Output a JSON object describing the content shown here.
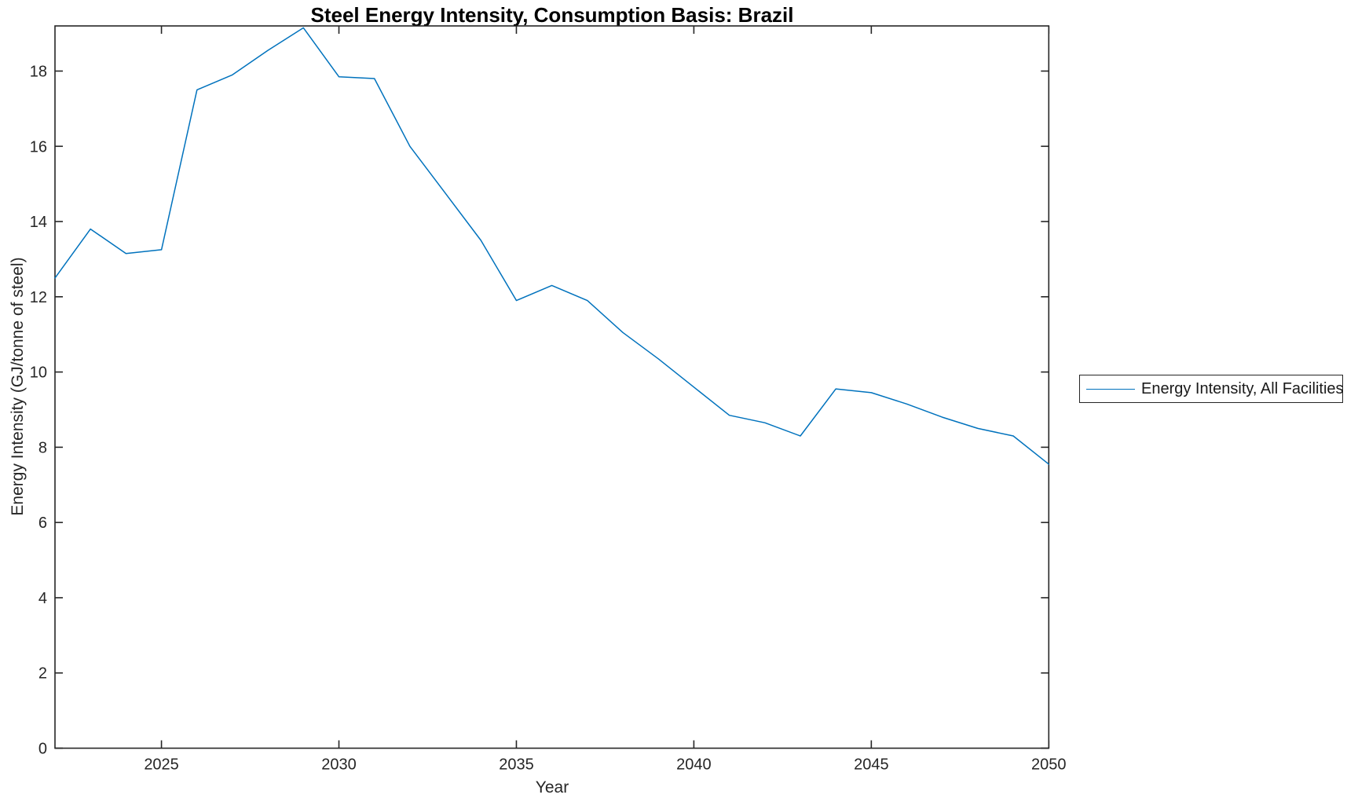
{
  "figure": {
    "title": "Steel Energy Intensity, Consumption Basis: Brazil"
  },
  "chart_data": {
    "type": "line",
    "title": "Steel Energy Intensity, Consumption Basis: Brazil",
    "xlabel": "Year",
    "ylabel": "Energy Intensity (GJ/tonne of steel)",
    "xlim": [
      2022,
      2050
    ],
    "ylim": [
      0,
      19.2
    ],
    "xticks": [
      2025,
      2030,
      2035,
      2040,
      2045,
      2050
    ],
    "yticks": [
      0,
      2,
      4,
      6,
      8,
      10,
      12,
      14,
      16,
      18
    ],
    "grid": false,
    "box": true,
    "axis_color": "#262626",
    "line_color": "#0072BD",
    "legend": {
      "position": "right-outside",
      "entries": [
        "Energy Intensity, All Facilities"
      ]
    },
    "series": [
      {
        "name": "Energy Intensity, All Facilities",
        "x": [
          2022,
          2023,
          2024,
          2025,
          2026,
          2027,
          2028,
          2029,
          2030,
          2031,
          2032,
          2033,
          2034,
          2035,
          2036,
          2037,
          2038,
          2039,
          2040,
          2041,
          2042,
          2043,
          2044,
          2045,
          2046,
          2047,
          2048,
          2049,
          2050
        ],
        "values": [
          12.5,
          13.8,
          13.15,
          13.25,
          17.5,
          17.9,
          18.55,
          19.15,
          17.85,
          17.8,
          16.0,
          14.75,
          13.5,
          11.9,
          12.3,
          11.9,
          11.05,
          10.35,
          9.6,
          8.85,
          8.65,
          8.3,
          9.55,
          9.45,
          9.15,
          8.8,
          8.5,
          8.3,
          7.55
        ]
      }
    ]
  }
}
